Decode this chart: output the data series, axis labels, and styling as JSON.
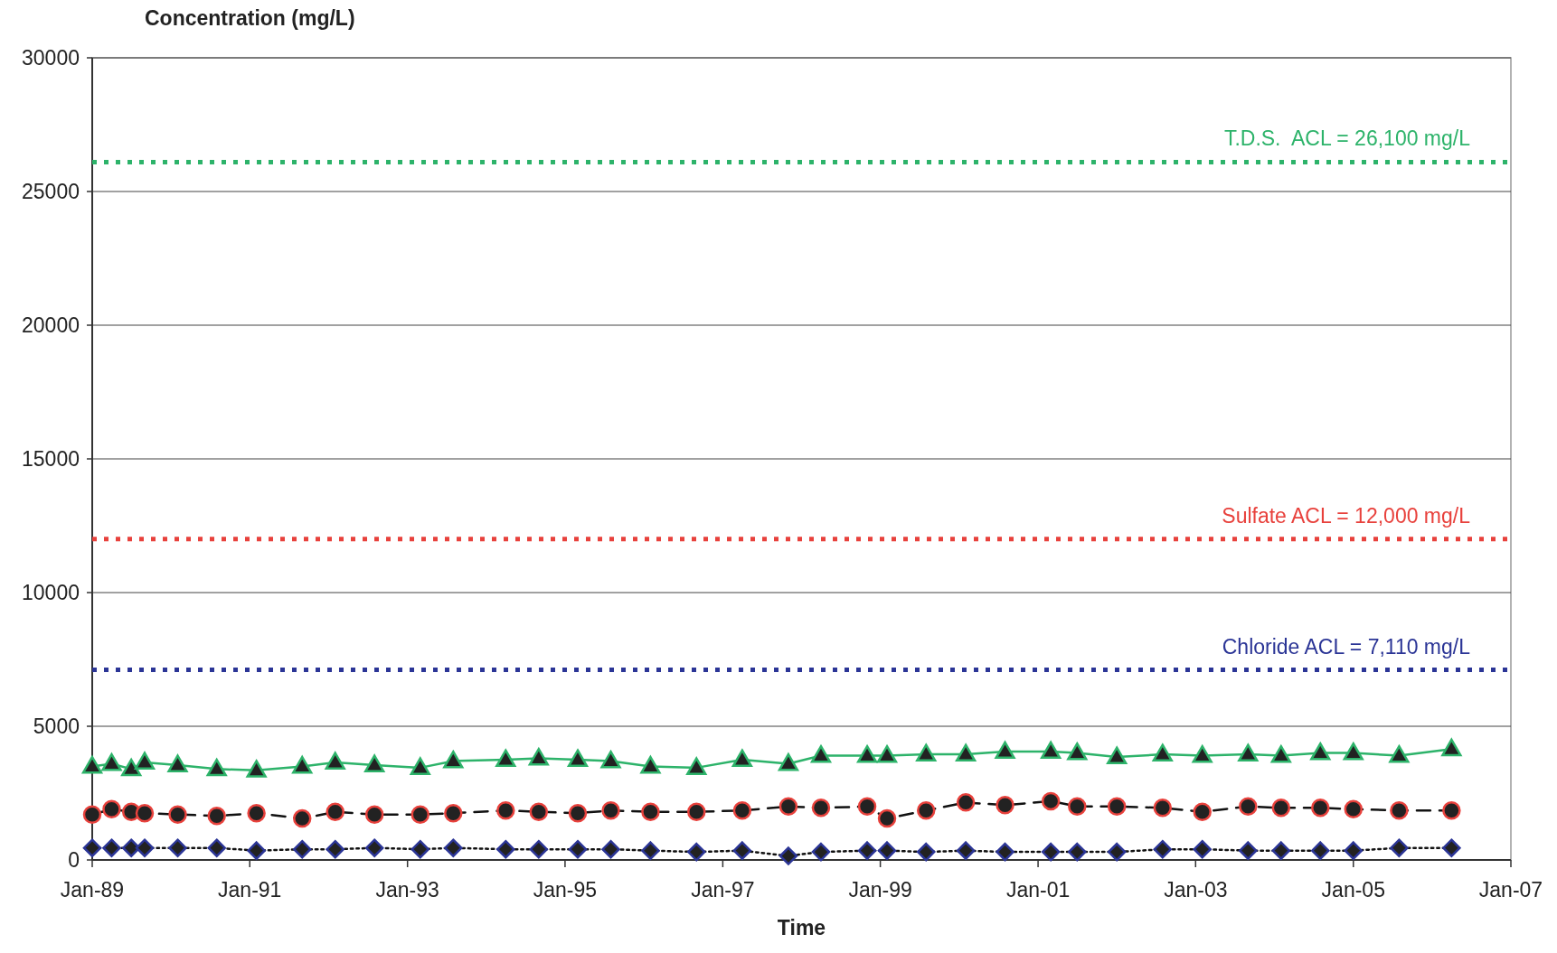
{
  "chart_data": {
    "type": "line",
    "ylabel": "Concentration (mg/L)",
    "xlabel": "Time",
    "x": [
      "1989-01",
      "1989-04",
      "1989-07",
      "1989-09",
      "1990-02",
      "1990-08",
      "1991-02",
      "1991-09",
      "1992-02",
      "1992-08",
      "1993-03",
      "1993-08",
      "1994-04",
      "1994-09",
      "1995-03",
      "1995-08",
      "1996-02",
      "1996-09",
      "1997-04",
      "1997-11",
      "1998-04",
      "1998-11",
      "1999-02",
      "1999-08",
      "2000-02",
      "2000-08",
      "2001-03",
      "2001-07",
      "2002-01",
      "2002-08",
      "2003-02",
      "2003-09",
      "2004-02",
      "2004-08",
      "2005-01",
      "2005-08",
      "2006-04"
    ],
    "series": [
      {
        "color": "#2db36a",
        "marker": "triangle",
        "line_style": "solid",
        "values": [
          3500,
          3600,
          3400,
          3650,
          3550,
          3400,
          3350,
          3500,
          3650,
          3550,
          3450,
          3700,
          3750,
          3800,
          3750,
          3700,
          3500,
          3450,
          3750,
          3600,
          3900,
          3900,
          3900,
          3950,
          3950,
          4050,
          4050,
          4000,
          3850,
          3950,
          3900,
          3950,
          3900,
          4000,
          4000,
          3900,
          4150
        ]
      },
      {
        "color": "#e8413c",
        "marker": "circle",
        "line_style": "dashed",
        "values": [
          1700,
          1900,
          1800,
          1750,
          1700,
          1650,
          1750,
          1550,
          1800,
          1700,
          1700,
          1750,
          1850,
          1800,
          1750,
          1850,
          1800,
          1800,
          1850,
          2000,
          1950,
          2000,
          1550,
          1850,
          2150,
          2050,
          2200,
          2000,
          2000,
          1950,
          1800,
          2000,
          1950,
          1950,
          1900,
          1850,
          1850
        ]
      },
      {
        "color": "#2b3596",
        "marker": "diamond",
        "line_style": "dotted",
        "values": [
          450,
          450,
          450,
          450,
          450,
          450,
          350,
          400,
          400,
          450,
          400,
          450,
          400,
          400,
          400,
          400,
          350,
          300,
          350,
          150,
          300,
          350,
          350,
          300,
          350,
          300,
          300,
          300,
          300,
          400,
          400,
          350,
          350,
          350,
          350,
          450,
          450
        ]
      }
    ],
    "xlim": [
      "1989-01-01",
      "2007-01-01"
    ],
    "xticks": [
      {
        "value": "1989-01-01",
        "label": "Jan-89"
      },
      {
        "value": "1991-01-01",
        "label": "Jan-91"
      },
      {
        "value": "1993-01-01",
        "label": "Jan-93"
      },
      {
        "value": "1995-01-01",
        "label": "Jan-95"
      },
      {
        "value": "1997-01-01",
        "label": "Jan-97"
      },
      {
        "value": "1999-01-01",
        "label": "Jan-99"
      },
      {
        "value": "2001-01-01",
        "label": "Jan-01"
      },
      {
        "value": "2003-01-01",
        "label": "Jan-03"
      },
      {
        "value": "2005-01-01",
        "label": "Jan-05"
      },
      {
        "value": "2007-01-01",
        "label": "Jan-07"
      }
    ],
    "ylim": [
      0,
      30000
    ],
    "yticks": [
      0,
      5000,
      10000,
      15000,
      20000,
      25000,
      30000
    ],
    "grid": "y",
    "ref_lines": [
      {
        "axis": "y",
        "value": 26100,
        "label": "T.D.S.  ACL = 26,100 mg/L",
        "color": "#2db36a",
        "line_style": "dotted"
      },
      {
        "axis": "y",
        "value": 12000,
        "label": "Sulfate ACL = 12,000 mg/L",
        "color": "#e8413c",
        "line_style": "dotted"
      },
      {
        "axis": "y",
        "value": 7110,
        "label": "Chloride ACL = 7,110 mg/L",
        "color": "#2b3596",
        "line_style": "dotted"
      }
    ]
  }
}
